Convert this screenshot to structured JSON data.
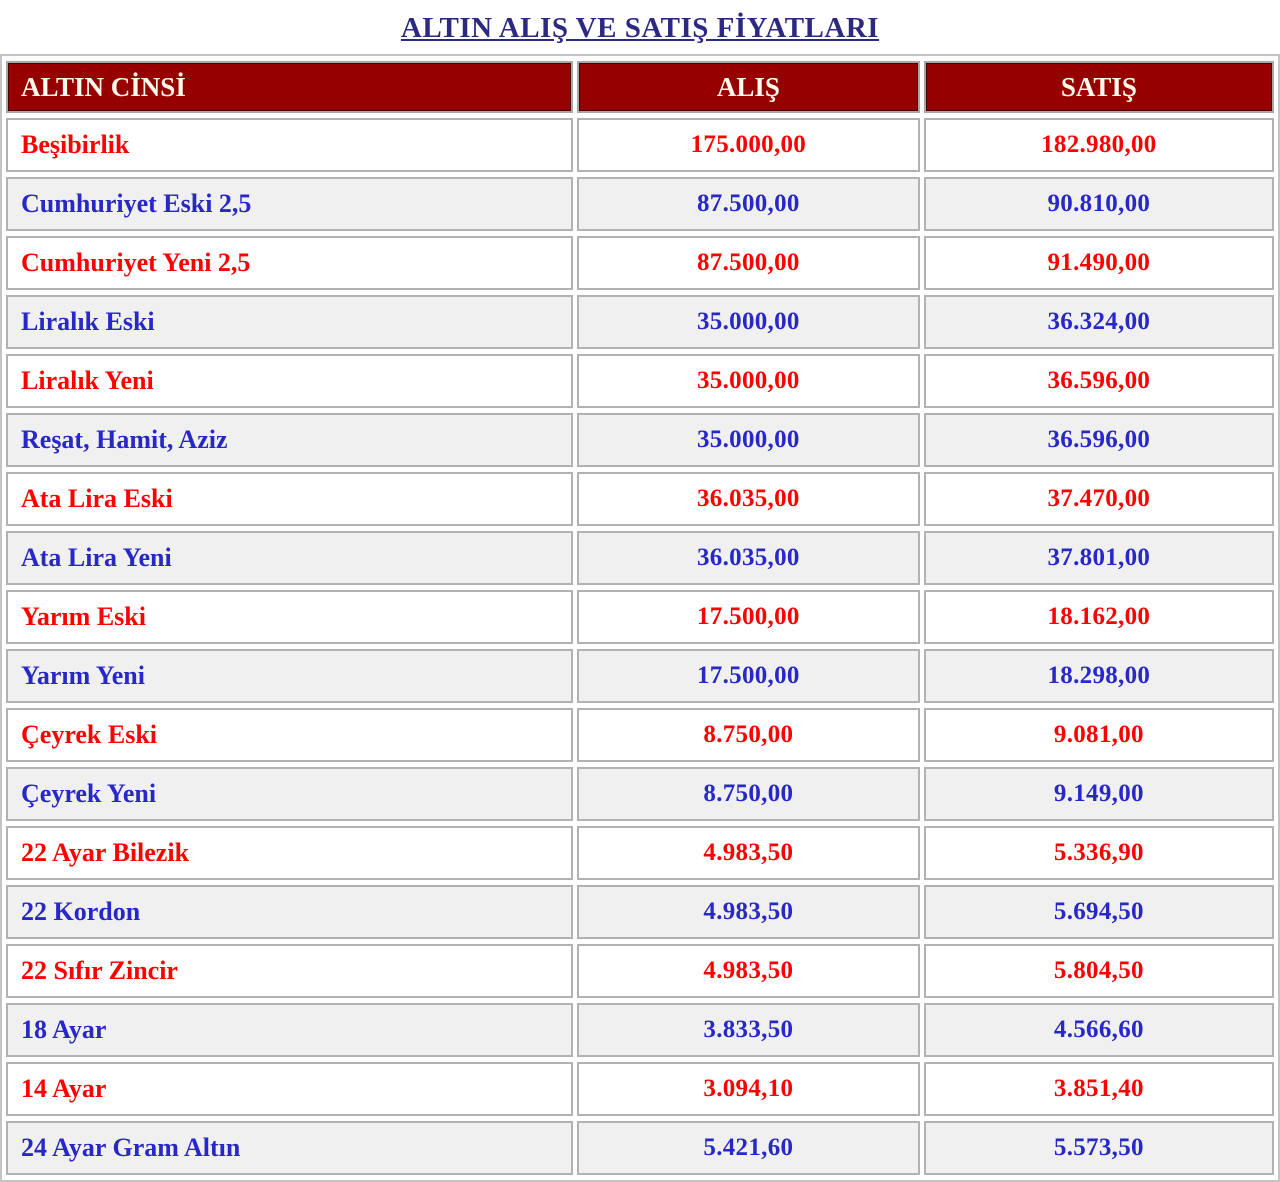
{
  "page": {
    "title": "ALTIN ALIŞ VE SATIŞ FİYATLARI"
  },
  "colors": {
    "title_text": "#2d2882",
    "header_background": "#970000",
    "header_text": "#fffbec",
    "odd_row_text": "#ff0000",
    "odd_row_background": "#ffffff",
    "even_row_text": "#2828c8",
    "even_row_background": "#f0f0f0",
    "cell_border": "#b2b2b2"
  },
  "table": {
    "headers": [
      "ALTIN CİNSİ",
      "ALIŞ",
      "SATIŞ"
    ],
    "rows": [
      {
        "name": "Beşibirlik",
        "buy": "175.000,00",
        "sell": "182.980,00"
      },
      {
        "name": "Cumhuriyet Eski 2,5",
        "buy": "87.500,00",
        "sell": "90.810,00"
      },
      {
        "name": "Cumhuriyet Yeni 2,5",
        "buy": "87.500,00",
        "sell": "91.490,00"
      },
      {
        "name": "Liralık Eski",
        "buy": "35.000,00",
        "sell": "36.324,00"
      },
      {
        "name": "Liralık Yeni",
        "buy": "35.000,00",
        "sell": "36.596,00"
      },
      {
        "name": "Reşat, Hamit, Aziz",
        "buy": "35.000,00",
        "sell": "36.596,00"
      },
      {
        "name": "Ata Lira Eski",
        "buy": "36.035,00",
        "sell": "37.470,00"
      },
      {
        "name": "Ata Lira Yeni",
        "buy": "36.035,00",
        "sell": "37.801,00"
      },
      {
        "name": "Yarım Eski",
        "buy": "17.500,00",
        "sell": "18.162,00"
      },
      {
        "name": "Yarım Yeni",
        "buy": "17.500,00",
        "sell": "18.298,00"
      },
      {
        "name": "Çeyrek Eski",
        "buy": "8.750,00",
        "sell": "9.081,00"
      },
      {
        "name": "Çeyrek Yeni",
        "buy": "8.750,00",
        "sell": "9.149,00"
      },
      {
        "name": "22 Ayar Bilezik",
        "buy": "4.983,50",
        "sell": "5.336,90"
      },
      {
        "name": "22 Kordon",
        "buy": "4.983,50",
        "sell": "5.694,50"
      },
      {
        "name": "22 Sıfır Zincir",
        "buy": "4.983,50",
        "sell": "5.804,50"
      },
      {
        "name": "18 Ayar",
        "buy": "3.833,50",
        "sell": "4.566,60"
      },
      {
        "name": "14 Ayar",
        "buy": "3.094,10",
        "sell": "3.851,40"
      },
      {
        "name": "24 Ayar Gram Altın",
        "buy": "5.421,60",
        "sell": "5.573,50"
      }
    ]
  }
}
